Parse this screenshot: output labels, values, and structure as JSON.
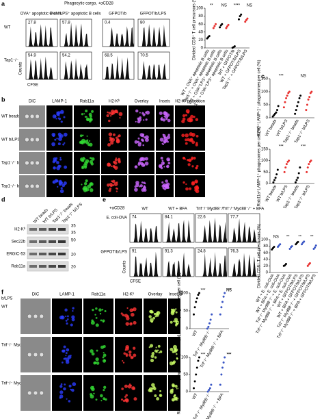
{
  "a": {
    "label": "a",
    "title": "Phagocytic cargo, +αCD28",
    "columns": [
      "OVA⁺ apoptotic B cells",
      "OVA⁺LPS⁺ apoptotic B cells",
      "GFPOT/b",
      "GFPOT/b/LPS"
    ],
    "rows": [
      "WT",
      "Tap1⁻/⁻"
    ],
    "numbers": [
      [
        "27.8",
        "57.8",
        "0.4",
        "80"
      ],
      [
        "54.9",
        "54.2",
        "68.5",
        "70.5"
      ]
    ],
    "y_label": "Counts",
    "x_label": "CFSE"
  },
  "b": {
    "label": "b",
    "columns": [
      "DIC",
      "LAMP-1",
      "Rab11a",
      "H2-Kᵇ",
      "Overlay",
      "Insets",
      "H2-Kᵇ projection"
    ],
    "rows": [
      "WT beads",
      "WT b/LPS",
      "Tap1⁻/⁻ beads",
      "Tap1⁻/⁻ b/LPS"
    ]
  },
  "d": {
    "label": "d",
    "lanes": [
      "WT beads",
      "WT b/LPS",
      "Tap1⁻/⁻ beads",
      "Tap1⁻/⁻ b/LPS"
    ],
    "rows": [
      "H2-Kᵇ",
      "Sec22b",
      "ERGIC-53",
      "Rab11a"
    ],
    "markers": [
      "35",
      "35",
      "50",
      "20",
      "20"
    ]
  },
  "e": {
    "label": "e",
    "title": "+αCD28",
    "columns": [
      "WT",
      "WT + BFA",
      "Trif⁻/⁻Myd88⁻/⁻",
      "Trif⁻/⁻Myd88⁻/⁻ + BFA"
    ],
    "rows": [
      "E. coli-OVA",
      "GFPOT/b/LPS"
    ],
    "numbers": [
      [
        "74",
        "84.1",
        "22.6",
        "77.7"
      ],
      [
        "91",
        "91.3",
        "24.8",
        "76.3"
      ]
    ],
    "y_label": "Counts",
    "x_label": "CFSE"
  },
  "f": {
    "label": "f",
    "condition": "b/LPS",
    "columns": [
      "DIC",
      "LAMP-1",
      "Rab11a",
      "H2-Kᵇ",
      "Overlay",
      "Insets"
    ],
    "rows": [
      "WT",
      "Trif⁻/⁻ Myd88⁻/⁻",
      "Trif⁻/⁻ Myd88⁻/⁻ + BFA"
    ]
  },
  "plots": [
    {
      "label": "",
      "y_label": "Divided CD8⁺ T cell precursors (%)",
      "ylim": [
        0,
        100
      ],
      "yticks": [
        0,
        20,
        40,
        60,
        80,
        100
      ],
      "annotations": [
        "**",
        "NS",
        "****",
        "NS"
      ],
      "groups": [
        {
          "name": "WT + OVA⁺ apoptotic B cells",
          "color": "#000000",
          "values": [
            24,
            27,
            30
          ]
        },
        {
          "name": "Tap1⁻/⁻ + OVA⁺ apoptotic B cells",
          "color": "#e8312f",
          "values": [
            50,
            55,
            60
          ]
        },
        {
          "name": "WT + OVA⁺LPS⁺ apoptotic B cells",
          "color": "#000000",
          "values": [
            52,
            57,
            60
          ]
        },
        {
          "name": "Tap1⁻/⁻ + OVA⁺LPS⁺ apoptotic B cells",
          "color": "#e8312f",
          "values": [
            50,
            54,
            58
          ]
        },
        {
          "name": "WT + GFPOT/b",
          "color": "#000000",
          "values": [
            0.4,
            2,
            4
          ]
        },
        {
          "name": "WT + GFPOT/b/LPS",
          "color": "#000000",
          "values": [
            72,
            80,
            84
          ]
        },
        {
          "name": "Tap1⁻/⁻ + GFPOT/b/LPS",
          "color": "#e8312f",
          "values": [
            66,
            70,
            74
          ]
        }
      ]
    },
    {
      "label": "c",
      "y_label": "H2-Kᵇ⁺LAMP-1⁺ phagosomes per cell (%)",
      "ylim": [
        0,
        150
      ],
      "yticks": [
        0,
        50,
        100,
        150
      ],
      "annotations": [
        "***",
        "NS"
      ],
      "groups": [
        {
          "name": "WT beads",
          "color": "#000000",
          "values": [
            5,
            10,
            15,
            20,
            30,
            45
          ]
        },
        {
          "name": "WT b/LPS",
          "color": "#e8312f",
          "values": [
            40,
            60,
            75,
            85,
            95,
            100
          ]
        },
        {
          "name": "Tap1⁻/⁻ beads",
          "color": "#000000",
          "values": [
            15,
            30,
            45,
            60,
            75,
            85
          ]
        },
        {
          "name": "Tap1⁻/⁻ b/LPS",
          "color": "#e8312f",
          "values": [
            30,
            50,
            70,
            80,
            95,
            100
          ]
        }
      ]
    },
    {
      "label": "",
      "y_label": "Rab11a⁺LAMP-1⁺ phagosomes per cell (%)",
      "ylim": [
        0,
        150
      ],
      "yticks": [
        0,
        50,
        100,
        150
      ],
      "annotations": [
        "***",
        "***"
      ],
      "groups": [
        {
          "name": "WT beads",
          "color": "#000000",
          "values": [
            5,
            15,
            25,
            40,
            60
          ]
        },
        {
          "name": "WT b/LPS",
          "color": "#e8312f",
          "values": [
            50,
            70,
            85,
            95,
            100
          ]
        },
        {
          "name": "Tap1⁻/⁻ beads",
          "color": "#000000",
          "values": [
            5,
            15,
            25,
            45,
            70
          ]
        },
        {
          "name": "Tap1⁻/⁻ b/LPS",
          "color": "#e8312f",
          "values": [
            50,
            70,
            85,
            95,
            100
          ]
        }
      ]
    },
    {
      "label": "",
      "y_label": "Divided CD8⁺ T cell precursors (%)",
      "ylim": [
        0,
        100
      ],
      "yticks": [
        0,
        20,
        40,
        60,
        80,
        100
      ],
      "annotations": [
        "NS",
        "**",
        "**",
        "**"
      ],
      "groups": [
        {
          "name": "WT + E. coli-OVA",
          "color": "#000000",
          "values": [
            70,
            74,
            78
          ]
        },
        {
          "name": "WT + BFA + E. coli-OVA",
          "color": "#3a56c5",
          "values": [
            78,
            82,
            86
          ]
        },
        {
          "name": "Trif⁻/⁻ Myd88⁻/⁻ + E. coli-OVA",
          "color": "#000000",
          "values": [
            20,
            22,
            26
          ]
        },
        {
          "name": "Trif⁻/⁻ Myd88⁻/⁻ + BFA + E. coli-OVA",
          "color": "#3a56c5",
          "values": [
            72,
            77,
            80
          ]
        },
        {
          "name": "WT + GFPOT/b/LPS",
          "color": "#000000",
          "values": [
            86,
            90,
            93
          ]
        },
        {
          "name": "WT + BFA + GFPOT/b/LPS",
          "color": "#3a56c5",
          "values": [
            86,
            91,
            94
          ]
        },
        {
          "name": "Trif⁻/⁻ Myd88⁻/⁻ + GFPOT/b/LPS",
          "color": "#e8312f",
          "values": [
            20,
            25,
            28
          ]
        },
        {
          "name": "Trif⁻/⁻ Myd88⁻/⁻ + BFA + GFPOT/b/LPS",
          "color": "#3a56c5",
          "values": [
            72,
            76,
            82
          ]
        }
      ]
    },
    {
      "label": "g",
      "y_label": "H2-Kᵇ⁺LAMP-1⁺ phagosomes per cell (%)",
      "ylim": [
        0,
        100
      ],
      "yticks": [
        0,
        50,
        100
      ],
      "annotations": [
        "***",
        "***",
        "NS"
      ],
      "groups": [
        {
          "name": "WT",
          "color": "#000000",
          "values": [
            40,
            60,
            75,
            85,
            95,
            100
          ]
        },
        {
          "name": "Trif⁻/⁻ Myd88⁻/⁻",
          "color": "#3a56c5",
          "values": [
            0,
            5,
            15,
            25,
            40
          ]
        },
        {
          "name": "Trif⁻/⁻ Myd88⁻/⁻ + BFA",
          "color": "#3a56c5",
          "values": [
            40,
            60,
            75,
            90,
            100
          ]
        }
      ]
    },
    {
      "label": "",
      "y_label": "Rab11a⁺LAMP-1⁺ phagosomes per cell (%)",
      "ylim": [
        0,
        100
      ],
      "yticks": [
        0,
        50,
        100
      ],
      "annotations": [
        "***",
        "***",
        "***"
      ],
      "groups": [
        {
          "name": "WT",
          "color": "#000000",
          "values": [
            10,
            30,
            50,
            70,
            90,
            100
          ]
        },
        {
          "name": "Trif⁻/⁻ Myd88⁻/⁻",
          "color": "#3a56c5",
          "values": [
            0,
            5,
            10,
            20
          ]
        },
        {
          "name": "Trif⁻/⁻ Myd88⁻/⁻ + BFA",
          "color": "#3a56c5",
          "values": [
            20,
            50,
            70,
            85,
            100
          ]
        }
      ]
    }
  ]
}
